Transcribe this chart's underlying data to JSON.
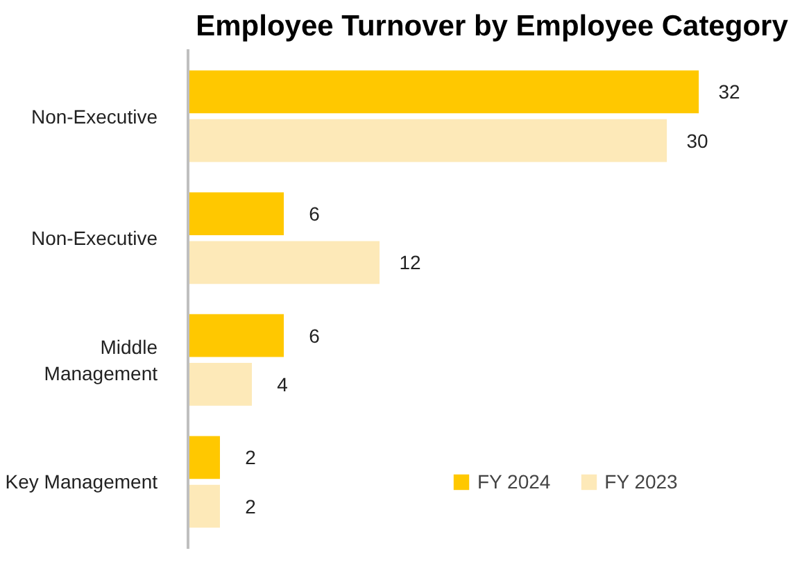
{
  "chart_data": {
    "type": "bar",
    "orientation": "horizontal",
    "title": "Employee Turnover by Employee Category",
    "categories": [
      "Non-Executive",
      "Non-Executive",
      "Middle Management",
      "Key Management"
    ],
    "series": [
      {
        "name": "FY 2024",
        "color": "#ffc800",
        "values": [
          32,
          6,
          6,
          2
        ]
      },
      {
        "name": "FY 2023",
        "color": "#fde9b8",
        "values": [
          30,
          12,
          4,
          2
        ]
      }
    ],
    "data_labels": true,
    "legend": "bottom right",
    "grid": false
  }
}
